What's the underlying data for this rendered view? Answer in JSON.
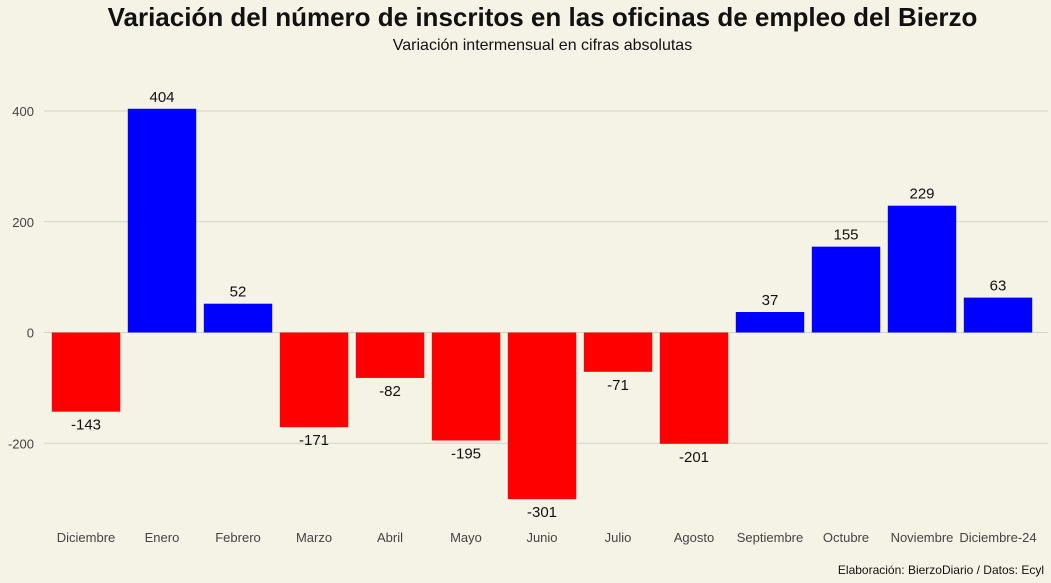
{
  "chart_data": {
    "type": "bar",
    "title": "Variación del número de inscritos en las oficinas de empleo del Bierzo",
    "subtitle": "Variación intermensual en cifras absolutas",
    "caption": "Elaboración: BierzoDiario / Datos: Ecyl",
    "categories": [
      "Diciembre",
      "Enero",
      "Febrero",
      "Marzo",
      "Abril",
      "Mayo",
      "Junio",
      "Julio",
      "Agosto",
      "Septiembre",
      "Octubre",
      "Noviembre",
      "Diciembre-24"
    ],
    "values": [
      -143,
      404,
      52,
      -171,
      -82,
      -195,
      -301,
      -71,
      -201,
      37,
      155,
      229,
      63
    ],
    "ylim": [
      -330,
      420
    ],
    "yticks": [
      -200,
      0,
      200,
      400
    ],
    "grid": true,
    "legend": false,
    "colors": {
      "positive": "#0000ff",
      "negative": "#ff0000",
      "background": "#f5f3e6",
      "grid": "#cfd6cb"
    }
  }
}
